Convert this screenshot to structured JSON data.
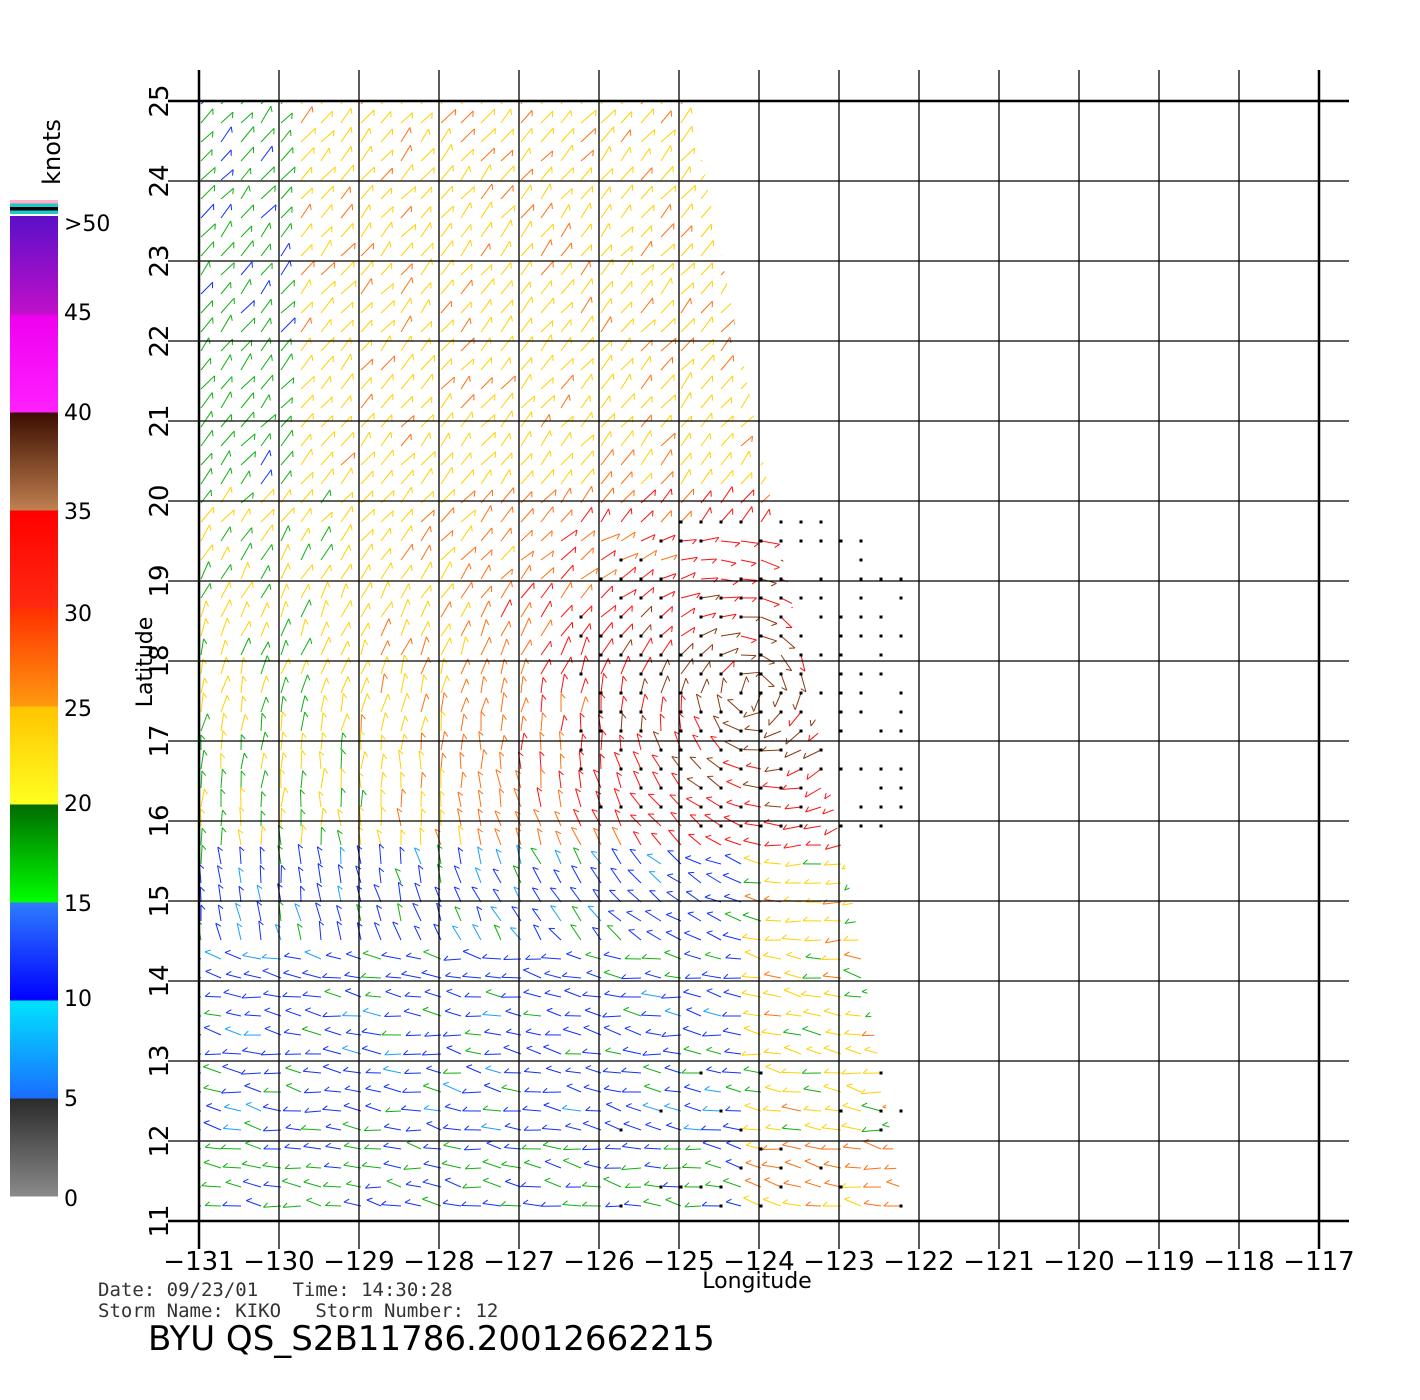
{
  "map": {
    "lon_ticks": [
      "−131",
      "−130",
      "−129",
      "−128",
      "−127",
      "−126",
      "−125",
      "−124",
      "−123",
      "−122",
      "−121",
      "−120",
      "−119",
      "−118",
      "−117"
    ],
    "lat_ticks": [
      "11",
      "12",
      "13",
      "14",
      "15",
      "16",
      "17",
      "18",
      "19",
      "20",
      "21",
      "22",
      "23",
      "24",
      "25"
    ],
    "lon_range": [
      -131,
      -117
    ],
    "lat_range": [
      11,
      25
    ],
    "xlabel": "Longitude",
    "ylabel": "Latitude"
  },
  "colorbar": {
    "unit": "knots",
    "labels": [
      "0",
      "5",
      "10",
      "15",
      "20",
      "25",
      "30",
      "35",
      "40",
      "45",
      ">50"
    ],
    "bands": [
      {
        "from": 0,
        "to": 5,
        "top": "#2a2a2a",
        "bottom": "#8a8a8a"
      },
      {
        "from": 5,
        "to": 10,
        "top": "#00e5ff",
        "bottom": "#1a6cff"
      },
      {
        "from": 10,
        "to": 15,
        "top": "#2f7dff",
        "bottom": "#0000ff"
      },
      {
        "from": 15,
        "to": 20,
        "top": "#006a00",
        "bottom": "#00ff00"
      },
      {
        "from": 20,
        "to": 25,
        "top": "#ffc400",
        "bottom": "#ffff20"
      },
      {
        "from": 25,
        "to": 30,
        "top": "#ff3000",
        "bottom": "#ff9a10"
      },
      {
        "from": 30,
        "to": 35,
        "top": "#ff0000",
        "bottom": "#ff2a10"
      },
      {
        "from": 35,
        "to": 40,
        "top": "#3a0c00",
        "bottom": "#c08050"
      },
      {
        "from": 40,
        "to": 45,
        "top": "#ee00ee",
        "bottom": "#ff20ff"
      },
      {
        "from": 45,
        "to": 50,
        "top": "#5a10c8",
        "bottom": "#c010c8"
      }
    ],
    "top_stripes": [
      "#ffb0c8",
      "#20c8c8",
      "#000000",
      "#20c8c8"
    ]
  },
  "info": {
    "date_line": "Date: 09/23/01   Time: 14:30:28",
    "storm_line": "Storm Name: KIKO   Storm Number: 12",
    "title": "BYU QS_S2B11786.20012662215"
  }
}
